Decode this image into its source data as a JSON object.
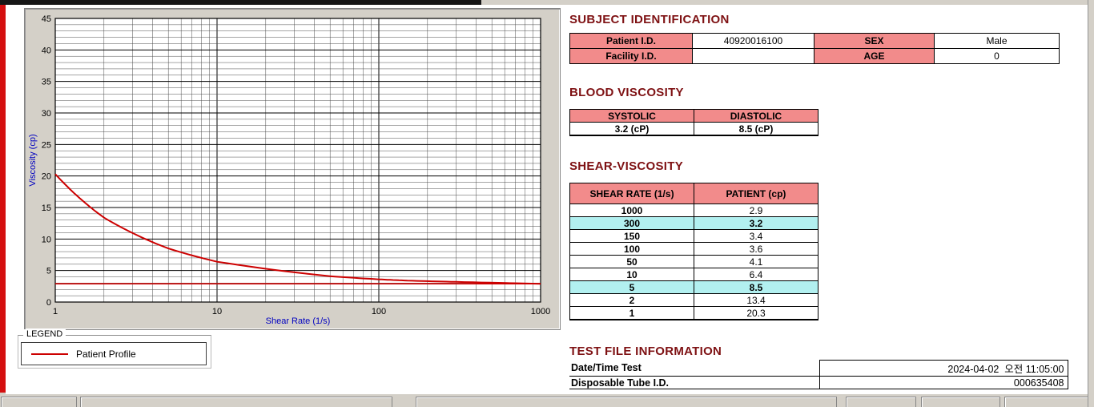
{
  "window": {
    "bg_color": "#d4d0c8",
    "accent_stripe_color": "#d40f0f"
  },
  "colors": {
    "section_title": "#7e1113",
    "table_header_pink": "#f28b8b",
    "row_highlight_cyan": "#b2f0f0",
    "curve_red": "#cc0000",
    "axis_label_blue": "#0000c0"
  },
  "chart_data": {
    "type": "line",
    "x_scale": "log",
    "x": [
      1,
      2,
      5,
      10,
      50,
      100,
      150,
      300,
      1000
    ],
    "series": [
      {
        "name": "Patient Profile",
        "color": "#cc0000",
        "values": [
          20.3,
          13.4,
          8.5,
          6.4,
          4.1,
          3.6,
          3.4,
          3.2,
          2.9
        ]
      }
    ],
    "baseline": {
      "value": 2.9,
      "color": "#cc0000"
    },
    "title": "",
    "xlabel": "Shear Rate (1/s)",
    "ylabel": "Viscosity (cp)",
    "xlim": [
      1,
      1000
    ],
    "ylim": [
      0,
      45
    ],
    "x_ticks": [
      1,
      10,
      100,
      1000
    ],
    "y_ticks": [
      0,
      5,
      10,
      15,
      20,
      25,
      30,
      35,
      40,
      45
    ],
    "grid": true,
    "legend_position": "below-left"
  },
  "legend": {
    "group_label": "LEGEND",
    "series_label": "Patient Profile"
  },
  "subject_identification": {
    "title": "SUBJECT IDENTIFICATION",
    "rows": [
      {
        "label1": "Patient I.D.",
        "value1": "40920016100",
        "label2": "SEX",
        "value2": "Male"
      },
      {
        "label1": "Facility I.D.",
        "value1": "",
        "label2": "AGE",
        "value2": "0"
      }
    ]
  },
  "blood_viscosity": {
    "title": "BLOOD VISCOSITY",
    "headers": [
      "SYSTOLIC",
      "DIASTOLIC"
    ],
    "values": [
      "3.2 (cP)",
      "8.5 (cP)"
    ]
  },
  "shear_viscosity": {
    "title": "SHEAR-VISCOSITY",
    "headers": [
      "SHEAR RATE (1/s)",
      "PATIENT (cp)"
    ],
    "rows": [
      {
        "rate": "1000",
        "value": "2.9",
        "highlight": false
      },
      {
        "rate": "300",
        "value": "3.2",
        "highlight": true
      },
      {
        "rate": "150",
        "value": "3.4",
        "highlight": false
      },
      {
        "rate": "100",
        "value": "3.6",
        "highlight": false
      },
      {
        "rate": "50",
        "value": "4.1",
        "highlight": false
      },
      {
        "rate": "10",
        "value": "6.4",
        "highlight": false
      },
      {
        "rate": "5",
        "value": "8.5",
        "highlight": true
      },
      {
        "rate": "2",
        "value": "13.4",
        "highlight": false
      },
      {
        "rate": "1",
        "value": "20.3",
        "highlight": false
      }
    ]
  },
  "test_file_information": {
    "title": "TEST FILE INFORMATION",
    "rows": [
      {
        "label": "Date/Time Test",
        "value": "2024-04-02  오전 11:05:00"
      },
      {
        "label": "Disposable Tube I.D.",
        "value": "000635408"
      }
    ]
  }
}
